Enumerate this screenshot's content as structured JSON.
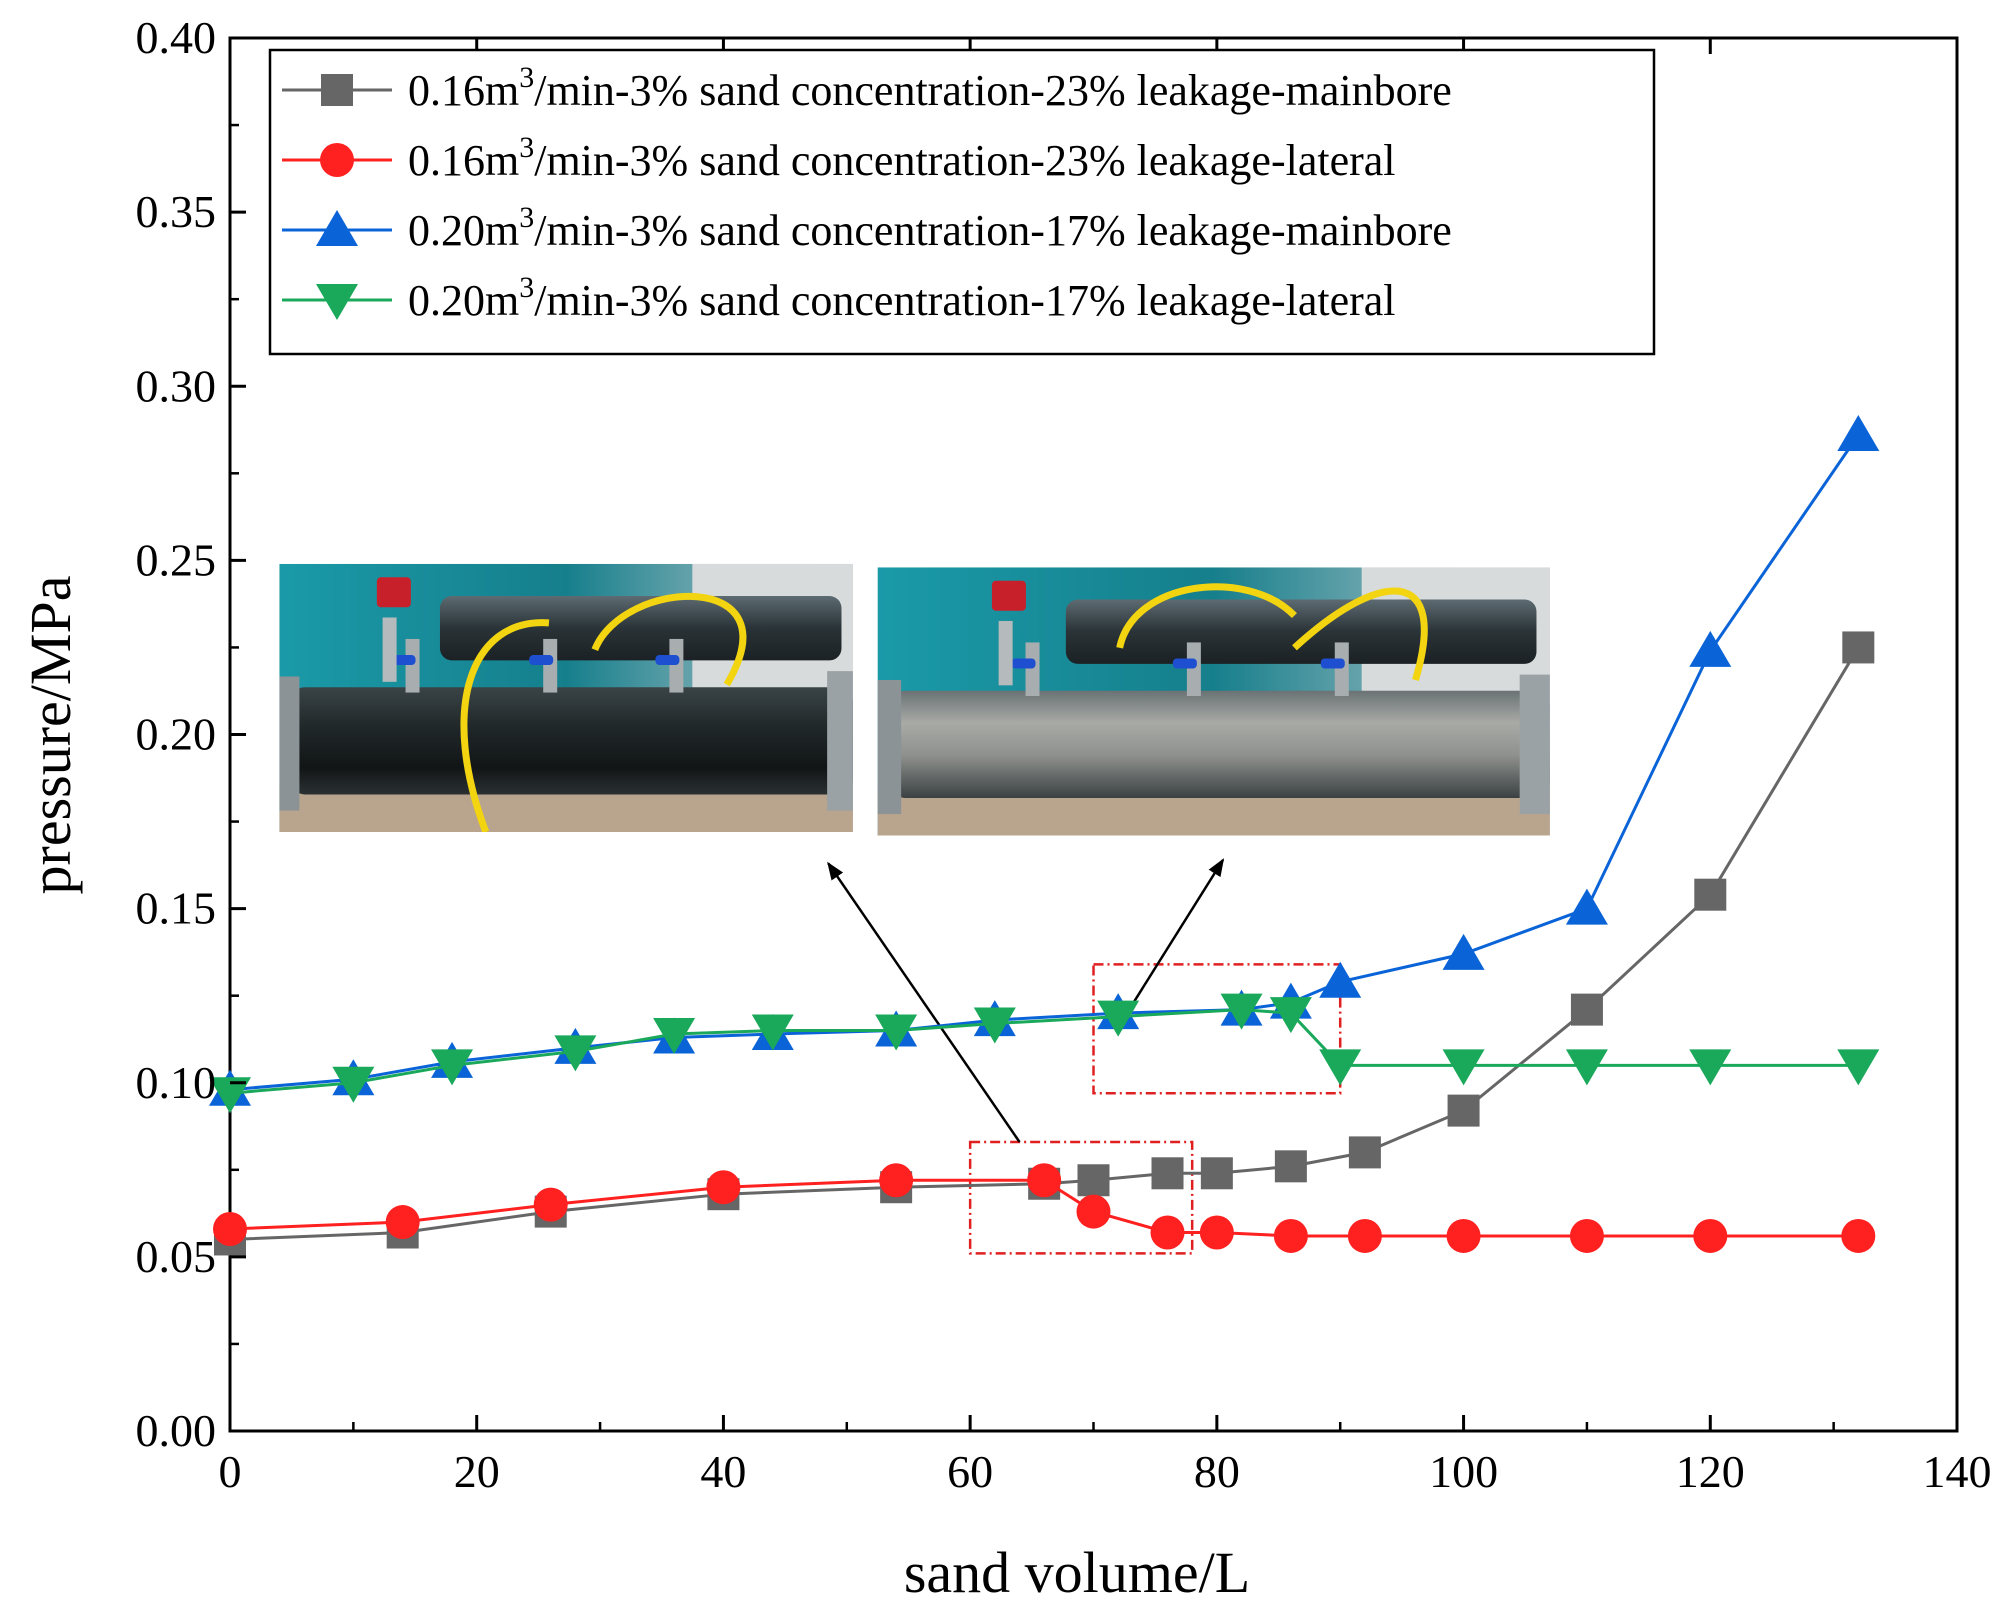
{
  "chart_data": {
    "type": "line",
    "xlabel": "sand volume/L",
    "ylabel": "pressure/MPa",
    "xlim": [
      0,
      140
    ],
    "ylim": [
      0.0,
      0.4
    ],
    "x_ticks": [
      "0",
      "20",
      "40",
      "60",
      "80",
      "100",
      "120",
      "140"
    ],
    "y_ticks": [
      "0.00",
      "0.05",
      "0.10",
      "0.15",
      "0.20",
      "0.25",
      "0.30",
      "0.35",
      "0.40"
    ],
    "grid": false,
    "legend_position": "top-left",
    "series": [
      {
        "name_prefix": "0.16m",
        "name_sup": "3",
        "name_suffix": "/min-3% sand concentration-23% leakage-mainbore",
        "color": "#666666",
        "marker": "square",
        "x": [
          0,
          14,
          26,
          40,
          54,
          66,
          70,
          76,
          80,
          86,
          92,
          100,
          110,
          120,
          132
        ],
        "y": [
          0.055,
          0.057,
          0.063,
          0.068,
          0.07,
          0.071,
          0.072,
          0.074,
          0.074,
          0.076,
          0.08,
          0.092,
          0.121,
          0.154,
          0.225
        ]
      },
      {
        "name_prefix": "0.16m",
        "name_sup": "3",
        "name_suffix": "/min-3% sand concentration-23% leakage-lateral",
        "color": "#ff2020",
        "marker": "circle",
        "x": [
          0,
          14,
          26,
          40,
          54,
          66,
          70,
          76,
          80,
          86,
          92,
          100,
          110,
          120,
          132
        ],
        "y": [
          0.058,
          0.06,
          0.065,
          0.07,
          0.072,
          0.072,
          0.063,
          0.057,
          0.057,
          0.056,
          0.056,
          0.056,
          0.056,
          0.056,
          0.056
        ]
      },
      {
        "name_prefix": "0.20m",
        "name_sup": "3",
        "name_suffix": "/min-3% sand concentration-17% leakage-mainbore",
        "color": "#0a64d8",
        "marker": "triangle-up",
        "x": [
          0,
          10,
          18,
          28,
          36,
          44,
          54,
          62,
          72,
          82,
          86,
          90,
          100,
          110,
          120,
          132
        ],
        "y": [
          0.098,
          0.101,
          0.106,
          0.11,
          0.113,
          0.114,
          0.115,
          0.118,
          0.12,
          0.121,
          0.123,
          0.129,
          0.137,
          0.15,
          0.224,
          0.286
        ]
      },
      {
        "name_prefix": "0.20m",
        "name_sup": "3",
        "name_suffix": "/min-3% sand concentration-17% leakage-lateral",
        "color": "#1aa85a",
        "marker": "triangle-down",
        "x": [
          0,
          10,
          18,
          28,
          36,
          44,
          54,
          62,
          72,
          82,
          86,
          90,
          100,
          110,
          120,
          132
        ],
        "y": [
          0.097,
          0.1,
          0.105,
          0.109,
          0.114,
          0.115,
          0.115,
          0.117,
          0.119,
          0.121,
          0.12,
          0.105,
          0.105,
          0.105,
          0.105,
          0.105
        ]
      }
    ],
    "annotations": [
      {
        "type": "dashed-rectangle",
        "color": "#e02020",
        "x_range": [
          60,
          78
        ],
        "y_range": [
          0.051,
          0.083
        ]
      },
      {
        "type": "dashed-rectangle",
        "color": "#e02020",
        "x_range": [
          70,
          90
        ],
        "y_range": [
          0.097,
          0.134
        ]
      },
      {
        "type": "arrow",
        "color": "#000000",
        "from": [
          64,
          0.083
        ],
        "to": [
          48.5,
          0.163
        ]
      },
      {
        "type": "arrow",
        "color": "#000000",
        "from": [
          72,
          0.116
        ],
        "to": [
          80.5,
          0.164
        ]
      }
    ],
    "inset_photos": [
      {
        "name": "left-photo",
        "description_visual": "black pipe with yellow hoses",
        "x_range": [
          4,
          50.5
        ],
        "y_range": [
          0.172,
          0.249
        ]
      },
      {
        "name": "right-photo",
        "description_visual": "sand-filled pipe with yellow hoses",
        "x_range": [
          52.5,
          107
        ],
        "y_range": [
          0.171,
          0.248
        ]
      }
    ]
  }
}
